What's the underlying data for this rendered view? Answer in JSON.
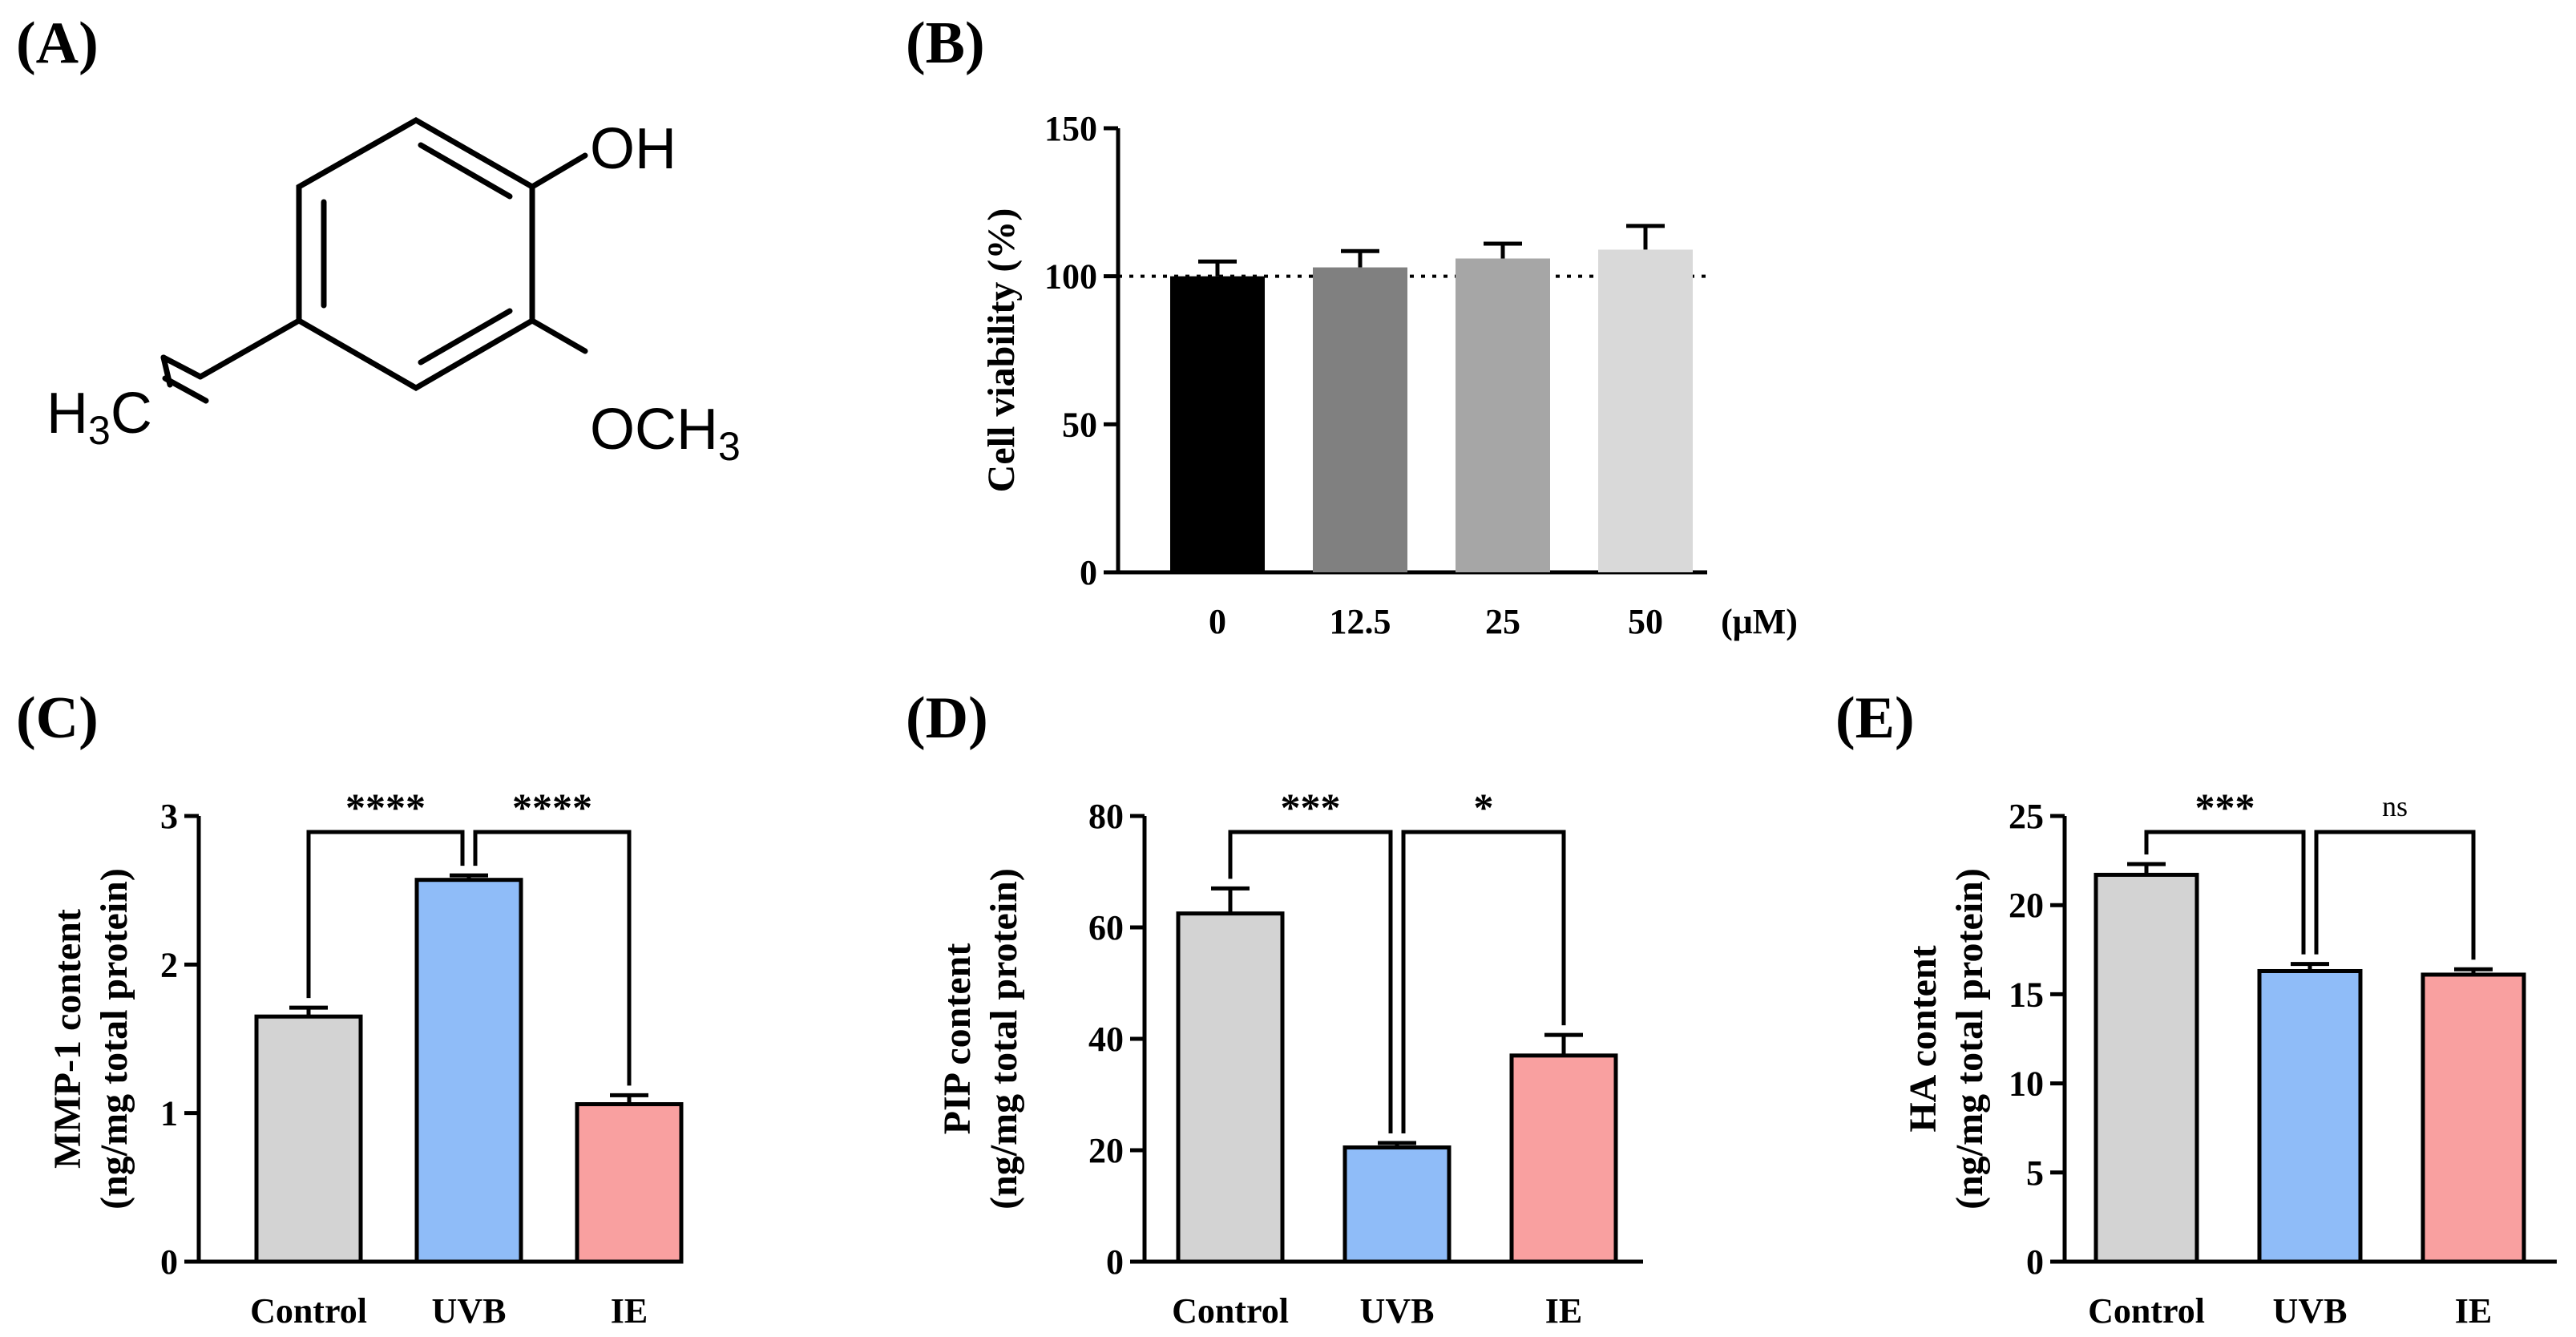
{
  "panel_labels": {
    "a": "(A)",
    "b": "(B)",
    "c": "(C)",
    "d": "(D)",
    "e": "(E)"
  },
  "structure": {
    "name": "isoeugenol",
    "oh": "OH",
    "och3_prefix": "OCH",
    "och3_sub": "3",
    "h3c_h": "H",
    "h3c_sub": "3",
    "h3c_c": "C"
  },
  "chart_data": [
    {
      "id": "B",
      "type": "bar",
      "title": "",
      "ylabel": "Cell viability (%)",
      "xlabel": "(μM)",
      "categories": [
        "0",
        "12.5",
        "25",
        "50"
      ],
      "values": [
        100,
        103,
        106,
        109
      ],
      "errors": [
        5,
        5.5,
        5,
        8
      ],
      "colors": [
        "#000000",
        "#808080",
        "#a6a6a6",
        "#d9d9d9"
      ],
      "ylim": [
        0,
        150
      ],
      "yticks": [
        0,
        50,
        100,
        150
      ],
      "reference_line": 100,
      "significance": []
    },
    {
      "id": "C",
      "type": "bar",
      "title": "",
      "ylabel": "MMP-1 content",
      "ylabel2": "(ng/mg total protein)",
      "categories": [
        "Control",
        "UVB",
        "IE"
      ],
      "values": [
        1.65,
        2.57,
        1.06
      ],
      "errors": [
        0.06,
        0.03,
        0.06
      ],
      "colors": [
        "#d3d3d3",
        "#8fbcf8",
        "#f9a0a0"
      ],
      "ylim": [
        0,
        3
      ],
      "yticks": [
        0,
        1,
        2,
        3
      ],
      "significance": [
        {
          "from": 0,
          "to": 1,
          "label": "****"
        },
        {
          "from": 1,
          "to": 2,
          "label": "****"
        }
      ]
    },
    {
      "id": "D",
      "type": "bar",
      "title": "",
      "ylabel": "PIP content",
      "ylabel2": "(ng/mg total protein)",
      "categories": [
        "Control",
        "UVB",
        "IE"
      ],
      "values": [
        62.5,
        20.5,
        37
      ],
      "errors": [
        4.5,
        0.8,
        3.7
      ],
      "colors": [
        "#d3d3d3",
        "#8fbcf8",
        "#f9a0a0"
      ],
      "ylim": [
        0,
        80
      ],
      "yticks": [
        0,
        20,
        40,
        60,
        80
      ],
      "significance": [
        {
          "from": 0,
          "to": 1,
          "label": "***"
        },
        {
          "from": 1,
          "to": 2,
          "label": "*"
        }
      ]
    },
    {
      "id": "E",
      "type": "bar",
      "title": "",
      "ylabel": "HA content",
      "ylabel2": "(ng/mg total protein)",
      "categories": [
        "Control",
        "UVB",
        "IE"
      ],
      "values": [
        21.7,
        16.3,
        16.1
      ],
      "errors": [
        0.6,
        0.4,
        0.3
      ],
      "colors": [
        "#d3d3d3",
        "#8fbcf8",
        "#f9a0a0"
      ],
      "ylim": [
        0,
        25
      ],
      "yticks": [
        0,
        5,
        10,
        15,
        20,
        25
      ],
      "significance": [
        {
          "from": 0,
          "to": 1,
          "label": "***"
        },
        {
          "from": 1,
          "to": 2,
          "label": "ns"
        }
      ]
    }
  ]
}
